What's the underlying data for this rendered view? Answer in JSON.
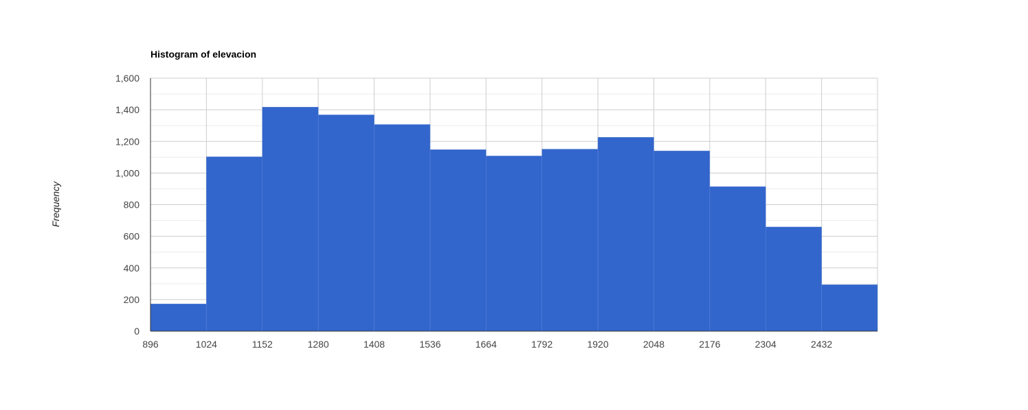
{
  "chart_data": {
    "type": "bar",
    "title": "Histogram of elevacion",
    "xlabel": "",
    "ylabel": "Frequency",
    "bin_edges": [
      896,
      1024,
      1152,
      1280,
      1408,
      1536,
      1664,
      1792,
      1920,
      2048,
      2176,
      2304,
      2432,
      2560
    ],
    "x_tick_labels": [
      "896",
      "1024",
      "1152",
      "1280",
      "1408",
      "1536",
      "1664",
      "1792",
      "1920",
      "2048",
      "2176",
      "2304",
      "2432"
    ],
    "values": [
      172,
      1103,
      1417,
      1368,
      1307,
      1148,
      1108,
      1151,
      1226,
      1140,
      914,
      659,
      294
    ],
    "ylim": [
      0,
      1600
    ],
    "y_ticks": [
      0,
      200,
      400,
      600,
      800,
      1000,
      1200,
      1400,
      1600
    ],
    "y_tick_labels": [
      "0",
      "200",
      "400",
      "600",
      "800",
      "1,000",
      "1,200",
      "1,400",
      "1,600"
    ],
    "grid": true,
    "bar_color": "#3366cc",
    "grid_color": "#cccccc",
    "minor_grid_color": "#ebebeb"
  }
}
